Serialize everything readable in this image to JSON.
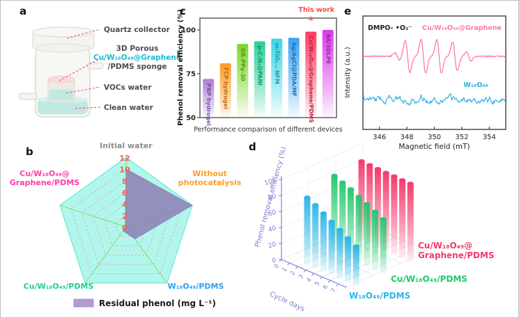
{
  "panels": {
    "a": {
      "letter": "a",
      "labels": [
        {
          "text": "Quartz collector",
          "color": "#4d4d4d"
        },
        {
          "text": "3D Porous",
          "color": "#4d4d4d"
        },
        {
          "text": "Cu/W₁₈O₄₉@Graphene",
          "color": "#17bcd4"
        },
        {
          "text": "/PDMS sponge",
          "color": "#4d4d4d"
        },
        {
          "text": "VOCs water",
          "color": "#4d4d4d"
        },
        {
          "text": "Clean water",
          "color": "#4d4d4d"
        }
      ],
      "leader_color": "#f23ba6"
    },
    "b": {
      "letter": "b"
    },
    "c": {
      "letter": "c"
    },
    "d": {
      "letter": "d"
    },
    "e": {
      "letter": "e"
    }
  },
  "chart_data": [
    {
      "id": "c",
      "type": "bar",
      "xlabel": "Performance comparison of different devices",
      "ylabel": "Phenol removal efficiency (%)",
      "ylim": [
        50,
        104
      ],
      "yticks": [
        50,
        75,
        100
      ],
      "categories": [
        "PNP hydrogel",
        "FCP hydrogel",
        "GR-PPy-30",
        "p-C₃N₄@PANI",
        "m-TiO₂₋ₓ NFM",
        "Ag/AgCl@PDA/MF",
        "Cu/W₁₈O₄₉@Graphene/PDMS",
        "B6/3DLPE"
      ],
      "values": [
        72,
        81,
        92,
        93.5,
        95,
        95.5,
        99,
        100
      ],
      "colors": [
        "#a678d8",
        "#ff9416",
        "#76d41f",
        "#1fce8e",
        "#30d3e6",
        "#2e9ff2",
        "#ff3056",
        "#d832ea"
      ],
      "annotation": {
        "text": "This work",
        "marker": "*",
        "color": "#ff4545",
        "target_index": 6
      }
    },
    {
      "id": "b",
      "type": "radar",
      "axes": [
        {
          "label": [
            "Initial water"
          ],
          "color": "#8c8c8c"
        },
        {
          "label": [
            "Without",
            "photocatalysis"
          ],
          "color": "#ff9c2a"
        },
        {
          "label": [
            "W₁₈O₄₉/PDMS"
          ],
          "color": "#2e9ff2"
        },
        {
          "label": [
            "Cu/W₁₈O₄₉/PDMS"
          ],
          "color": "#1fce8e"
        },
        {
          "label": [
            "Cu/W₁₈O₄₉@",
            "Graphene/PDMS"
          ],
          "color": "#ff3ba7"
        }
      ],
      "rticks": [
        12,
        10,
        8,
        6,
        4,
        2,
        0
      ],
      "rmax": 12,
      "series": [
        {
          "name": "Residual phenol (mg L⁻¹)",
          "values": [
            10,
            12,
            2.6,
            0.9,
            0.15
          ],
          "fill": "#8d7fb5"
        }
      ],
      "colors": {
        "pentagon_fill": "#7df0e0",
        "pentagon_edge": "#52e8d6",
        "grid": "#ff7a6a",
        "spoke": "#7ed957",
        "tick": "#ff5a50"
      },
      "legend": {
        "swatch": "#b49bd6",
        "label": "Residual phenol (mg L⁻¹)"
      }
    },
    {
      "id": "d",
      "type": "bar3d",
      "zlabel": "Phenol removal efficiency (%)",
      "xlabel": "Cycle days",
      "zticks": [
        0,
        20,
        40,
        60,
        80,
        100
      ],
      "xticks": [
        0,
        1,
        2,
        3,
        4,
        5,
        6,
        7
      ],
      "categories": [
        1,
        2,
        3,
        4,
        5,
        6,
        7
      ],
      "series": [
        {
          "name": [
            "W₁₈O₄₉/PDMS"
          ],
          "color": "#29b6e8",
          "values": [
            85,
            80,
            74,
            68,
            62,
            56,
            50
          ]
        },
        {
          "name": [
            "Cu/W₁₈O₄₉/PDMS"
          ],
          "color": "#21c96b",
          "values": [
            97,
            93,
            89,
            84,
            79,
            74,
            69
          ]
        },
        {
          "name": [
            "Cu/W₁₈O₄₉@",
            "Graphene/PDMS"
          ],
          "color": "#f4386b",
          "values": [
            100,
            99.5,
            99,
            98.5,
            98.5,
            98,
            98
          ]
        }
      ],
      "axis_color": "#7c7cd9"
    },
    {
      "id": "e",
      "type": "line",
      "xlabel": "Magnetic field (mT)",
      "ylabel": "Intensity (a.u.)",
      "xticks": [
        346,
        348,
        350,
        352,
        354
      ],
      "xlim": [
        344.8,
        355.2
      ],
      "annotation": "DMPO- •O₂⁻",
      "series": [
        {
          "name": "Cu/W₁₈O₄₉@Graphene",
          "color": "#ff79b4",
          "kind": "epr",
          "peak_centers": [
            348.05,
            349.2,
            350.35,
            351.5
          ]
        },
        {
          "name": "W₁₈O₄₉",
          "color": "#29abe2",
          "kind": "noise"
        }
      ]
    }
  ]
}
